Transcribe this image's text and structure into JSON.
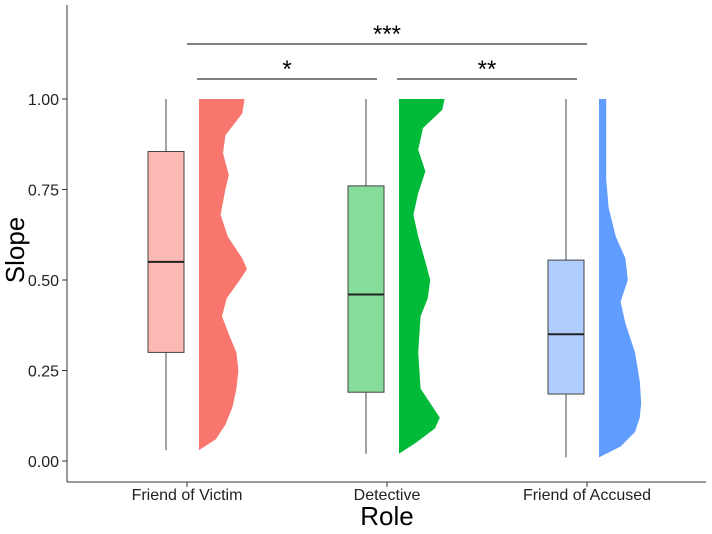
{
  "chart_data": {
    "type": "raincloud",
    "xlabel": "Role",
    "ylabel": "Slope",
    "ylim": [
      0,
      1
    ],
    "yticks": [
      "0.00",
      "0.25",
      "0.50",
      "0.75",
      "1.00"
    ],
    "grid": false,
    "categories": [
      "Friend of Victim",
      "Detective",
      "Friend of Accused"
    ],
    "series": [
      {
        "category": "Friend of Victim",
        "color": "#F8766D",
        "box_color": "#FCB8B3",
        "whisker_low": 0.03,
        "q1": 0.3,
        "median": 0.55,
        "q3": 0.855,
        "whisker_high": 1.0,
        "density": [
          [
            0.03,
            0.0
          ],
          [
            0.06,
            0.35
          ],
          [
            0.1,
            0.55
          ],
          [
            0.15,
            0.7
          ],
          [
            0.2,
            0.78
          ],
          [
            0.25,
            0.82
          ],
          [
            0.3,
            0.78
          ],
          [
            0.35,
            0.62
          ],
          [
            0.4,
            0.48
          ],
          [
            0.45,
            0.58
          ],
          [
            0.5,
            0.85
          ],
          [
            0.53,
            1.0
          ],
          [
            0.56,
            0.9
          ],
          [
            0.62,
            0.6
          ],
          [
            0.68,
            0.45
          ],
          [
            0.75,
            0.55
          ],
          [
            0.79,
            0.62
          ],
          [
            0.85,
            0.5
          ],
          [
            0.9,
            0.55
          ],
          [
            0.96,
            0.9
          ],
          [
            1.0,
            0.95
          ]
        ]
      },
      {
        "category": "Detective",
        "color": "#00BA38",
        "box_color": "#85DC9B",
        "whisker_low": 0.02,
        "q1": 0.19,
        "median": 0.46,
        "q3": 0.76,
        "whisker_high": 1.0,
        "density": [
          [
            0.02,
            0.0
          ],
          [
            0.05,
            0.35
          ],
          [
            0.09,
            0.75
          ],
          [
            0.12,
            0.85
          ],
          [
            0.15,
            0.7
          ],
          [
            0.2,
            0.45
          ],
          [
            0.3,
            0.4
          ],
          [
            0.4,
            0.45
          ],
          [
            0.45,
            0.6
          ],
          [
            0.5,
            0.65
          ],
          [
            0.55,
            0.55
          ],
          [
            0.62,
            0.4
          ],
          [
            0.68,
            0.3
          ],
          [
            0.74,
            0.4
          ],
          [
            0.8,
            0.55
          ],
          [
            0.86,
            0.4
          ],
          [
            0.92,
            0.5
          ],
          [
            0.97,
            0.9
          ],
          [
            1.0,
            0.95
          ]
        ]
      },
      {
        "category": "Friend of Accused",
        "color": "#619CFF",
        "box_color": "#B0CDFF",
        "whisker_low": 0.01,
        "q1": 0.185,
        "median": 0.35,
        "q3": 0.555,
        "whisker_high": 1.0,
        "density": [
          [
            0.01,
            0.0
          ],
          [
            0.04,
            0.45
          ],
          [
            0.08,
            0.75
          ],
          [
            0.12,
            0.85
          ],
          [
            0.16,
            0.88
          ],
          [
            0.22,
            0.85
          ],
          [
            0.3,
            0.75
          ],
          [
            0.38,
            0.55
          ],
          [
            0.44,
            0.45
          ],
          [
            0.5,
            0.6
          ],
          [
            0.56,
            0.55
          ],
          [
            0.62,
            0.35
          ],
          [
            0.7,
            0.2
          ],
          [
            0.78,
            0.15
          ],
          [
            0.86,
            0.15
          ],
          [
            0.94,
            0.15
          ],
          [
            1.0,
            0.15
          ]
        ]
      }
    ],
    "significance": [
      {
        "from": "Friend of Victim",
        "to": "Detective",
        "label": "*",
        "level": 1
      },
      {
        "from": "Detective",
        "to": "Friend of Accused",
        "label": "**",
        "level": 1
      },
      {
        "from": "Friend of Victim",
        "to": "Friend of Accused",
        "label": "***",
        "level": 2
      }
    ]
  }
}
